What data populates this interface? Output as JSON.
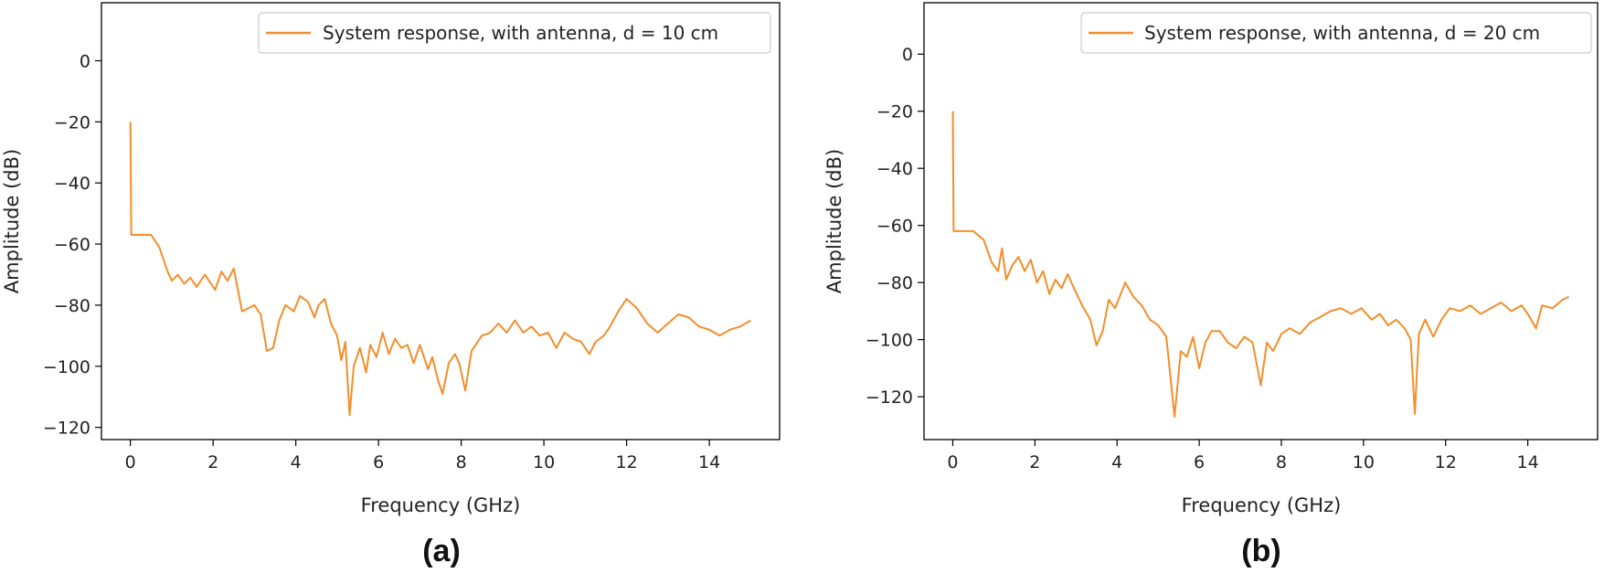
{
  "chart_data": [
    {
      "type": "line",
      "panel_label": "(a)",
      "xlabel": "Frequency (GHz)",
      "ylabel": "Amplitude (dB)",
      "xlim": [
        -0.7,
        15.7
      ],
      "ylim": [
        -124,
        19
      ],
      "x_ticks": [
        0,
        2,
        4,
        6,
        8,
        10,
        12,
        14
      ],
      "x_tick_labels": [
        "0",
        "2",
        "4",
        "6",
        "8",
        "10",
        "12",
        "14"
      ],
      "y_ticks": [
        0,
        -20,
        -40,
        -60,
        -80,
        -100,
        -120
      ],
      "y_tick_labels": [
        "0",
        "−20",
        "−40",
        "−60",
        "−80",
        "−100",
        "−120"
      ],
      "legend_position": "top-right",
      "series": [
        {
          "name": "System response, with antenna, d = 10 cm",
          "color": "#f28e2b",
          "points": [
            [
              0,
              -20
            ],
            [
              0.02,
              -57
            ],
            [
              0.5,
              -57
            ],
            [
              0.7,
              -61
            ],
            [
              0.9,
              -69
            ],
            [
              1.0,
              -72
            ],
            [
              1.15,
              -70
            ],
            [
              1.3,
              -73
            ],
            [
              1.45,
              -71
            ],
            [
              1.6,
              -74
            ],
            [
              1.8,
              -70
            ],
            [
              1.95,
              -73
            ],
            [
              2.05,
              -75
            ],
            [
              2.2,
              -69
            ],
            [
              2.35,
              -72
            ],
            [
              2.5,
              -68
            ],
            [
              2.6,
              -75
            ],
            [
              2.7,
              -82
            ],
            [
              3.0,
              -80
            ],
            [
              3.15,
              -83
            ],
            [
              3.3,
              -95
            ],
            [
              3.45,
              -94
            ],
            [
              3.6,
              -85
            ],
            [
              3.75,
              -80
            ],
            [
              3.95,
              -82
            ],
            [
              4.1,
              -77
            ],
            [
              4.3,
              -79
            ],
            [
              4.45,
              -84
            ],
            [
              4.55,
              -80
            ],
            [
              4.7,
              -78
            ],
            [
              4.85,
              -86
            ],
            [
              5.0,
              -90
            ],
            [
              5.1,
              -98
            ],
            [
              5.2,
              -92
            ],
            [
              5.3,
              -116
            ],
            [
              5.4,
              -100
            ],
            [
              5.55,
              -94
            ],
            [
              5.7,
              -102
            ],
            [
              5.8,
              -93
            ],
            [
              5.95,
              -97
            ],
            [
              6.1,
              -89
            ],
            [
              6.25,
              -96
            ],
            [
              6.4,
              -91
            ],
            [
              6.55,
              -94
            ],
            [
              6.7,
              -93
            ],
            [
              6.85,
              -99
            ],
            [
              7.0,
              -93
            ],
            [
              7.2,
              -101
            ],
            [
              7.3,
              -97
            ],
            [
              7.45,
              -105
            ],
            [
              7.55,
              -109
            ],
            [
              7.7,
              -99
            ],
            [
              7.85,
              -96
            ],
            [
              7.95,
              -99
            ],
            [
              8.1,
              -108
            ],
            [
              8.25,
              -95
            ],
            [
              8.5,
              -90
            ],
            [
              8.7,
              -89
            ],
            [
              8.9,
              -86
            ],
            [
              9.1,
              -89
            ],
            [
              9.3,
              -85
            ],
            [
              9.5,
              -89
            ],
            [
              9.7,
              -87
            ],
            [
              9.9,
              -90
            ],
            [
              10.1,
              -89
            ],
            [
              10.3,
              -94
            ],
            [
              10.5,
              -89
            ],
            [
              10.7,
              -91
            ],
            [
              10.9,
              -92
            ],
            [
              11.1,
              -96
            ],
            [
              11.25,
              -92
            ],
            [
              11.45,
              -90
            ],
            [
              11.6,
              -87
            ],
            [
              11.8,
              -82
            ],
            [
              12.0,
              -78
            ],
            [
              12.25,
              -81
            ],
            [
              12.5,
              -86
            ],
            [
              12.75,
              -89
            ],
            [
              13.0,
              -86
            ],
            [
              13.25,
              -83
            ],
            [
              13.5,
              -84
            ],
            [
              13.75,
              -87
            ],
            [
              14.0,
              -88
            ],
            [
              14.25,
              -90
            ],
            [
              14.5,
              -88
            ],
            [
              14.75,
              -87
            ],
            [
              15.0,
              -85
            ]
          ]
        }
      ]
    },
    {
      "type": "line",
      "panel_label": "(b)",
      "xlabel": "Frequency (GHz)",
      "ylabel": "Amplitude (dB)",
      "xlim": [
        -0.7,
        15.7
      ],
      "ylim": [
        -135,
        18
      ],
      "x_ticks": [
        0,
        2,
        4,
        6,
        8,
        10,
        12,
        14
      ],
      "x_tick_labels": [
        "0",
        "2",
        "4",
        "6",
        "8",
        "10",
        "12",
        "14"
      ],
      "y_ticks": [
        0,
        -20,
        -40,
        -60,
        -80,
        -100,
        -120
      ],
      "y_tick_labels": [
        "0",
        "−20",
        "−40",
        "−60",
        "−80",
        "−100",
        "−120"
      ],
      "legend_position": "top-right",
      "series": [
        {
          "name": "System response, with antenna, d = 20 cm",
          "color": "#f28e2b",
          "points": [
            [
              0,
              -20
            ],
            [
              0.02,
              -62
            ],
            [
              0.5,
              -62
            ],
            [
              0.75,
              -65
            ],
            [
              0.95,
              -73
            ],
            [
              1.1,
              -76
            ],
            [
              1.2,
              -68
            ],
            [
              1.3,
              -79
            ],
            [
              1.45,
              -74
            ],
            [
              1.6,
              -71
            ],
            [
              1.75,
              -76
            ],
            [
              1.9,
              -72
            ],
            [
              2.05,
              -80
            ],
            [
              2.2,
              -76
            ],
            [
              2.35,
              -84
            ],
            [
              2.5,
              -79
            ],
            [
              2.65,
              -82
            ],
            [
              2.8,
              -77
            ],
            [
              2.95,
              -82
            ],
            [
              3.15,
              -88
            ],
            [
              3.35,
              -93
            ],
            [
              3.5,
              -102
            ],
            [
              3.65,
              -97
            ],
            [
              3.8,
              -86
            ],
            [
              3.95,
              -89
            ],
            [
              4.2,
              -80
            ],
            [
              4.4,
              -85
            ],
            [
              4.6,
              -88
            ],
            [
              4.8,
              -93
            ],
            [
              5.0,
              -95
            ],
            [
              5.2,
              -99
            ],
            [
              5.4,
              -127
            ],
            [
              5.55,
              -104
            ],
            [
              5.7,
              -106
            ],
            [
              5.85,
              -99
            ],
            [
              6.0,
              -110
            ],
            [
              6.15,
              -101
            ],
            [
              6.3,
              -97
            ],
            [
              6.5,
              -97
            ],
            [
              6.7,
              -101
            ],
            [
              6.9,
              -103
            ],
            [
              7.1,
              -99
            ],
            [
              7.3,
              -101
            ],
            [
              7.5,
              -116
            ],
            [
              7.65,
              -101
            ],
            [
              7.8,
              -104
            ],
            [
              8.0,
              -98
            ],
            [
              8.2,
              -96
            ],
            [
              8.45,
              -98
            ],
            [
              8.7,
              -94
            ],
            [
              8.95,
              -92
            ],
            [
              9.2,
              -90
            ],
            [
              9.45,
              -89
            ],
            [
              9.7,
              -91
            ],
            [
              9.95,
              -89
            ],
            [
              10.2,
              -93
            ],
            [
              10.4,
              -91
            ],
            [
              10.6,
              -95
            ],
            [
              10.8,
              -93
            ],
            [
              11.0,
              -96
            ],
            [
              11.15,
              -100
            ],
            [
              11.25,
              -126
            ],
            [
              11.35,
              -98
            ],
            [
              11.5,
              -93
            ],
            [
              11.7,
              -99
            ],
            [
              11.9,
              -93
            ],
            [
              12.1,
              -89
            ],
            [
              12.35,
              -90
            ],
            [
              12.6,
              -88
            ],
            [
              12.85,
              -91
            ],
            [
              13.1,
              -89
            ],
            [
              13.35,
              -87
            ],
            [
              13.6,
              -90
            ],
            [
              13.85,
              -88
            ],
            [
              14.0,
              -91
            ],
            [
              14.2,
              -96
            ],
            [
              14.35,
              -88
            ],
            [
              14.6,
              -89
            ],
            [
              14.85,
              -86
            ],
            [
              15.0,
              -85
            ]
          ]
        }
      ]
    }
  ]
}
